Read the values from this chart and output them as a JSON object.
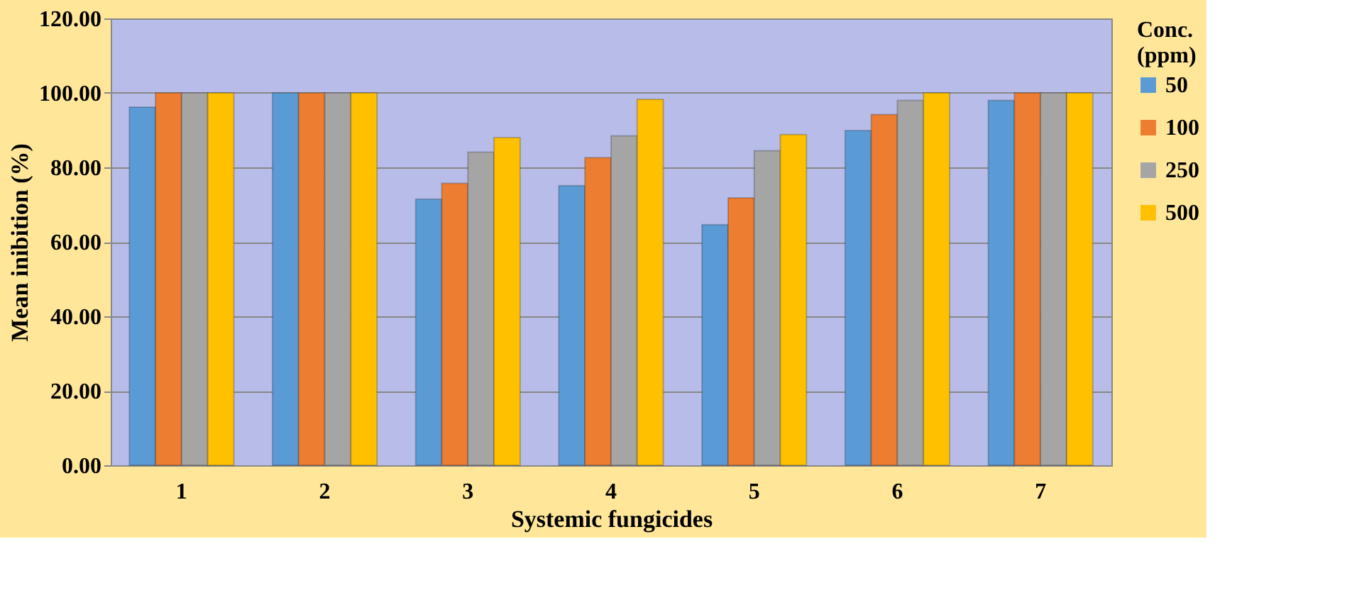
{
  "chart_data": {
    "type": "bar",
    "xlabel": "Systemic fungicides",
    "ylabel": "Mean inibition (%)",
    "legend_title": "Conc. (ppm)",
    "categories": [
      "1",
      "2",
      "3",
      "4",
      "5",
      "6",
      "7"
    ],
    "series": [
      {
        "name": "50",
        "color": "#5b9bd5",
        "values": [
          96.2,
          100,
          71.5,
          75.1,
          64.6,
          89.9,
          98.0
        ]
      },
      {
        "name": "100",
        "color": "#ed7d31",
        "values": [
          100,
          100,
          75.7,
          82.6,
          71.8,
          94.2,
          100
        ]
      },
      {
        "name": "250",
        "color": "#a5a5a5",
        "values": [
          100,
          100,
          84.1,
          88.5,
          84.5,
          98.0,
          100
        ]
      },
      {
        "name": "500",
        "color": "#ffc000",
        "values": [
          100,
          100,
          88.0,
          98.3,
          88.8,
          100,
          100
        ]
      }
    ],
    "ylim": [
      0,
      120
    ],
    "yticks": [
      {
        "value": 0,
        "label": "0.00"
      },
      {
        "value": 20,
        "label": "20.00"
      },
      {
        "value": 40,
        "label": "40.00"
      },
      {
        "value": 60,
        "label": "60.00"
      },
      {
        "value": 80,
        "label": "80.00"
      },
      {
        "value": 100,
        "label": "100.00"
      },
      {
        "value": 120,
        "label": "120.00"
      }
    ],
    "grid": "y",
    "legend": "right"
  }
}
